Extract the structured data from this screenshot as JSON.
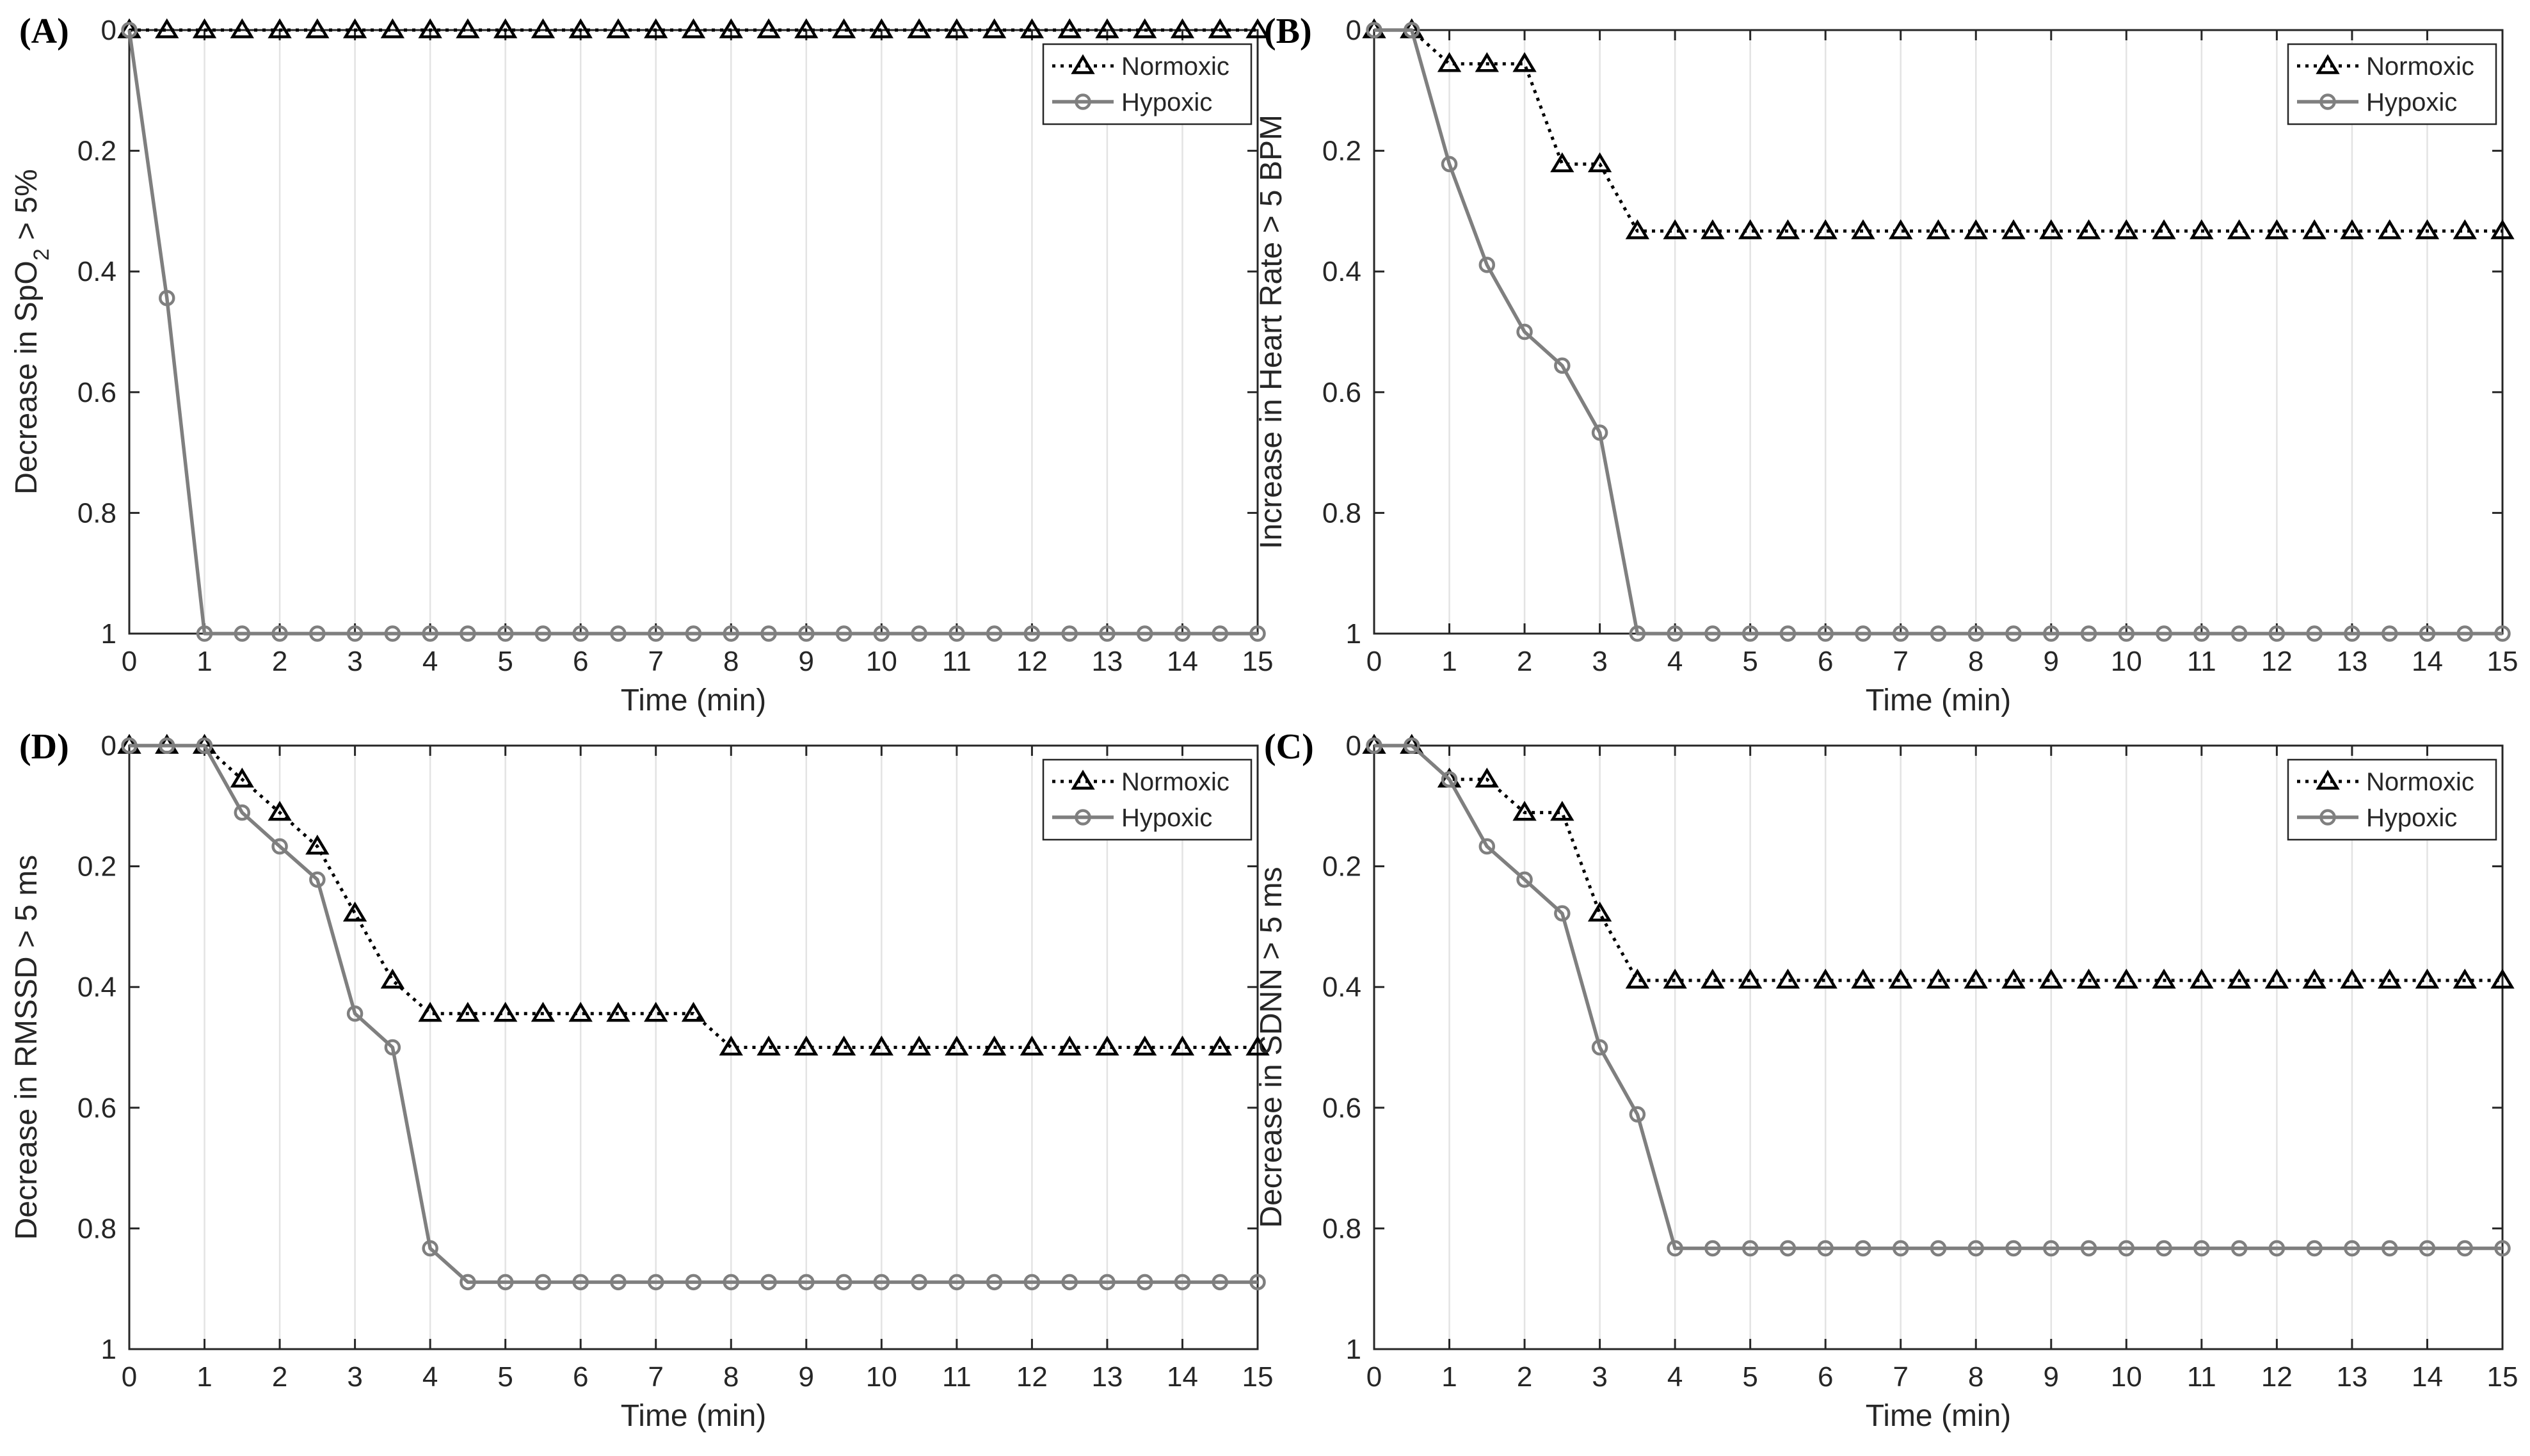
{
  "chart_data": [
    {
      "type": "line",
      "panel_label": "(A)",
      "title": "",
      "xlabel": "Time (min)",
      "ylabel": "Decrease in SpO",
      "ylabel_sub": "2",
      "ylabel_tail": " > 5%",
      "xlim": [
        0,
        15
      ],
      "ylim": [
        0,
        1
      ],
      "y_reversed": true,
      "grid": "x",
      "x_ticks": [
        "0",
        "1",
        "2",
        "3",
        "4",
        "5",
        "6",
        "7",
        "8",
        "9",
        "10",
        "11",
        "12",
        "13",
        "14",
        "15"
      ],
      "y_ticks": [
        "0",
        "0.2",
        "0.4",
        "0.6",
        "0.8",
        "1"
      ],
      "legend_position": "top-right",
      "x": [
        0,
        0.5,
        1,
        1.5,
        2,
        2.5,
        3,
        3.5,
        4,
        4.5,
        5,
        5.5,
        6,
        6.5,
        7,
        7.5,
        8,
        8.5,
        9,
        9.5,
        10,
        10.5,
        11,
        11.5,
        12,
        12.5,
        13,
        13.5,
        14,
        14.5,
        15
      ],
      "series": [
        {
          "name": "Normoxic",
          "style": "dotted-triangle",
          "color": "#000000",
          "values": [
            0,
            0,
            0,
            0,
            0,
            0,
            0,
            0,
            0,
            0,
            0,
            0,
            0,
            0,
            0,
            0,
            0,
            0,
            0,
            0,
            0,
            0,
            0,
            0,
            0,
            0,
            0,
            0,
            0,
            0,
            0
          ]
        },
        {
          "name": "Hypoxic",
          "style": "solid-circle",
          "color": "#7f7f7f",
          "values": [
            0,
            0.444,
            1,
            1,
            1,
            1,
            1,
            1,
            1,
            1,
            1,
            1,
            1,
            1,
            1,
            1,
            1,
            1,
            1,
            1,
            1,
            1,
            1,
            1,
            1,
            1,
            1,
            1,
            1,
            1,
            1
          ]
        }
      ]
    },
    {
      "type": "line",
      "panel_label": "(B)",
      "title": "",
      "xlabel": "Time (min)",
      "ylabel": "Increase in Heart Rate > 5 BPM",
      "ylabel_sub": "",
      "ylabel_tail": "",
      "xlim": [
        0,
        15
      ],
      "ylim": [
        0,
        1
      ],
      "y_reversed": true,
      "grid": "x",
      "x_ticks": [
        "0",
        "1",
        "2",
        "3",
        "4",
        "5",
        "6",
        "7",
        "8",
        "9",
        "10",
        "11",
        "12",
        "13",
        "14",
        "15"
      ],
      "y_ticks": [
        "0",
        "0.2",
        "0.4",
        "0.6",
        "0.8",
        "1"
      ],
      "legend_position": "top-right",
      "x": [
        0,
        0.5,
        1,
        1.5,
        2,
        2.5,
        3,
        3.5,
        4,
        4.5,
        5,
        5.5,
        6,
        6.5,
        7,
        7.5,
        8,
        8.5,
        9,
        9.5,
        10,
        10.5,
        11,
        11.5,
        12,
        12.5,
        13,
        13.5,
        14,
        14.5,
        15
      ],
      "series": [
        {
          "name": "Normoxic",
          "style": "dotted-triangle",
          "color": "#000000",
          "values": [
            0,
            0,
            0.056,
            0.056,
            0.056,
            0.222,
            0.222,
            0.333,
            0.333,
            0.333,
            0.333,
            0.333,
            0.333,
            0.333,
            0.333,
            0.333,
            0.333,
            0.333,
            0.333,
            0.333,
            0.333,
            0.333,
            0.333,
            0.333,
            0.333,
            0.333,
            0.333,
            0.333,
            0.333,
            0.333,
            0.333
          ]
        },
        {
          "name": "Hypoxic",
          "style": "solid-circle",
          "color": "#7f7f7f",
          "values": [
            0,
            0,
            0.222,
            0.389,
            0.5,
            0.556,
            0.667,
            1,
            1,
            1,
            1,
            1,
            1,
            1,
            1,
            1,
            1,
            1,
            1,
            1,
            1,
            1,
            1,
            1,
            1,
            1,
            1,
            1,
            1,
            1,
            1
          ]
        }
      ]
    },
    {
      "type": "line",
      "panel_label": "(D)",
      "title": "",
      "xlabel": "Time (min)",
      "ylabel": "Decrease in RMSSD > 5 ms",
      "ylabel_sub": "",
      "ylabel_tail": "",
      "xlim": [
        0,
        15
      ],
      "ylim": [
        0,
        1
      ],
      "y_reversed": true,
      "grid": "x",
      "x_ticks": [
        "0",
        "1",
        "2",
        "3",
        "4",
        "5",
        "6",
        "7",
        "8",
        "9",
        "10",
        "11",
        "12",
        "13",
        "14",
        "15"
      ],
      "y_ticks": [
        "0",
        "0.2",
        "0.4",
        "0.6",
        "0.8",
        "1"
      ],
      "legend_position": "top-right",
      "x": [
        0,
        0.5,
        1,
        1.5,
        2,
        2.5,
        3,
        3.5,
        4,
        4.5,
        5,
        5.5,
        6,
        6.5,
        7,
        7.5,
        8,
        8.5,
        9,
        9.5,
        10,
        10.5,
        11,
        11.5,
        12,
        12.5,
        13,
        13.5,
        14,
        14.5,
        15
      ],
      "series": [
        {
          "name": "Normoxic",
          "style": "dotted-triangle",
          "color": "#000000",
          "values": [
            0,
            0,
            0,
            0.056,
            0.111,
            0.167,
            0.278,
            0.389,
            0.444,
            0.444,
            0.444,
            0.444,
            0.444,
            0.444,
            0.444,
            0.444,
            0.5,
            0.5,
            0.5,
            0.5,
            0.5,
            0.5,
            0.5,
            0.5,
            0.5,
            0.5,
            0.5,
            0.5,
            0.5,
            0.5,
            0.5
          ]
        },
        {
          "name": "Hypoxic",
          "style": "solid-circle",
          "color": "#7f7f7f",
          "values": [
            0,
            0,
            0,
            0.111,
            0.167,
            0.222,
            0.444,
            0.5,
            0.833,
            0.889,
            0.889,
            0.889,
            0.889,
            0.889,
            0.889,
            0.889,
            0.889,
            0.889,
            0.889,
            0.889,
            0.889,
            0.889,
            0.889,
            0.889,
            0.889,
            0.889,
            0.889,
            0.889,
            0.889,
            0.889,
            0.889
          ]
        }
      ]
    },
    {
      "type": "line",
      "panel_label": "(C)",
      "title": "",
      "xlabel": "Time (min)",
      "ylabel": "Decrease in SDNN > 5 ms",
      "ylabel_sub": "",
      "ylabel_tail": "",
      "xlim": [
        0,
        15
      ],
      "ylim": [
        0,
        1
      ],
      "y_reversed": true,
      "grid": "x",
      "x_ticks": [
        "0",
        "1",
        "2",
        "3",
        "4",
        "5",
        "6",
        "7",
        "8",
        "9",
        "10",
        "11",
        "12",
        "13",
        "14",
        "15"
      ],
      "y_ticks": [
        "0",
        "0.2",
        "0.4",
        "0.6",
        "0.8",
        "1"
      ],
      "legend_position": "top-right",
      "x": [
        0,
        0.5,
        1,
        1.5,
        2,
        2.5,
        3,
        3.5,
        4,
        4.5,
        5,
        5.5,
        6,
        6.5,
        7,
        7.5,
        8,
        8.5,
        9,
        9.5,
        10,
        10.5,
        11,
        11.5,
        12,
        12.5,
        13,
        13.5,
        14,
        14.5,
        15
      ],
      "series": [
        {
          "name": "Normoxic",
          "style": "dotted-triangle",
          "color": "#000000",
          "values": [
            0,
            0,
            0.056,
            0.056,
            0.111,
            0.111,
            0.278,
            0.389,
            0.389,
            0.389,
            0.389,
            0.389,
            0.389,
            0.389,
            0.389,
            0.389,
            0.389,
            0.389,
            0.389,
            0.389,
            0.389,
            0.389,
            0.389,
            0.389,
            0.389,
            0.389,
            0.389,
            0.389,
            0.389,
            0.389,
            0.389
          ]
        },
        {
          "name": "Hypoxic",
          "style": "solid-circle",
          "color": "#7f7f7f",
          "values": [
            0,
            0,
            0.056,
            0.167,
            0.222,
            0.278,
            0.5,
            0.611,
            0.833,
            0.833,
            0.833,
            0.833,
            0.833,
            0.833,
            0.833,
            0.833,
            0.833,
            0.833,
            0.833,
            0.833,
            0.833,
            0.833,
            0.833,
            0.833,
            0.833,
            0.833,
            0.833,
            0.833,
            0.833,
            0.833,
            0.833
          ]
        }
      ]
    }
  ]
}
